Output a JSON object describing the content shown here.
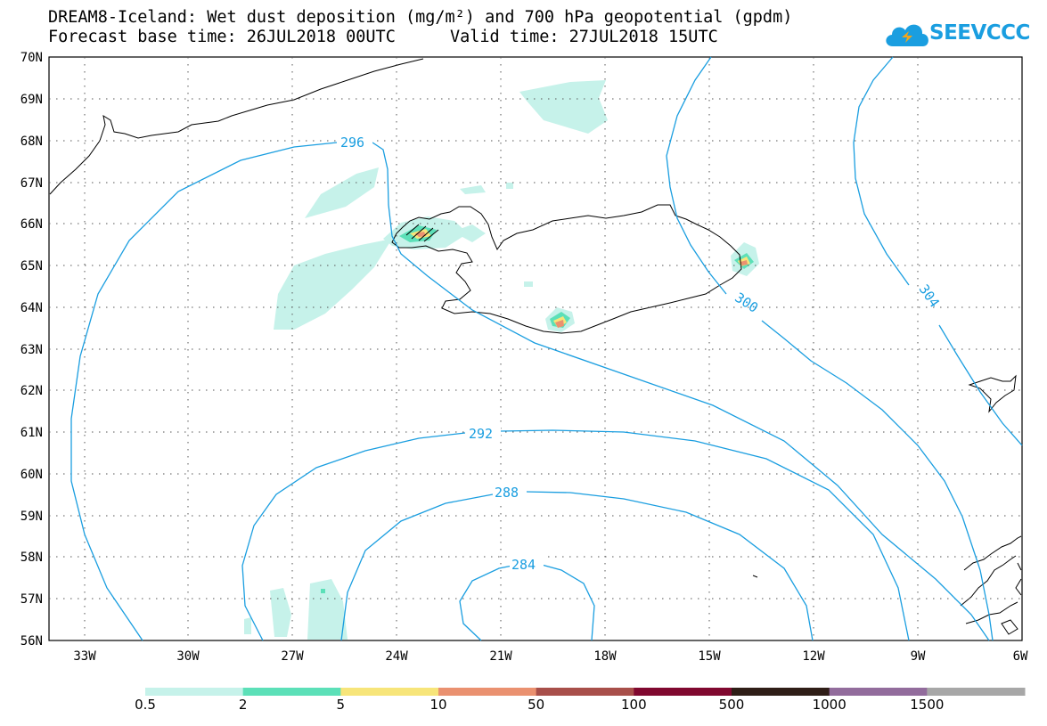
{
  "title_line1": "DREAM8-Iceland: Wet dust deposition (mg/m²) and 700 hPa geopotential (gpdm)",
  "base_time": "Forecast base time: 26JUL2018 00UTC",
  "valid_time": "Valid time: 27JUL2018 15UTC",
  "logo_text": "SEEVCCC",
  "map": {
    "lat_labels": [
      "70N",
      "69N",
      "68N",
      "67N",
      "66N",
      "65N",
      "64N",
      "63N",
      "62N",
      "61N",
      "60N",
      "59N",
      "58N",
      "57N",
      "56N"
    ],
    "lon_labels": [
      "33W",
      "30W",
      "27W",
      "24W",
      "21W",
      "18W",
      "15W",
      "12W",
      "9W",
      "6W"
    ],
    "contour_color": "#1a9ee0",
    "contours": [
      {
        "value": "284",
        "label": "284"
      },
      {
        "value": "288",
        "label": "288"
      },
      {
        "value": "292",
        "label": "292"
      },
      {
        "value": "296",
        "label": "296"
      },
      {
        "value": "300",
        "label": "300"
      },
      {
        "value": "304",
        "label": "304"
      }
    ]
  },
  "legend": {
    "colors": [
      "#c6f2ea",
      "#5ce0b8",
      "#f7e57a",
      "#ea9170",
      "#a84f4a",
      "#80082f",
      "#2f1e17",
      "#926c9c",
      "#a7a7a7"
    ],
    "labels": [
      "0.5",
      "2",
      "5",
      "10",
      "50",
      "100",
      "500",
      "1000",
      "1500"
    ]
  }
}
